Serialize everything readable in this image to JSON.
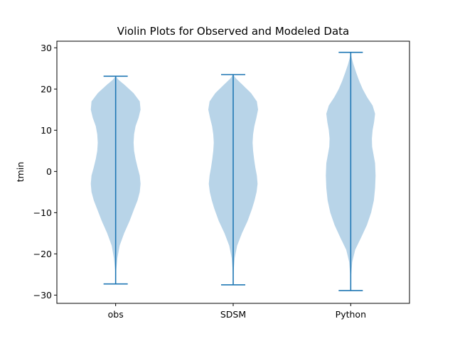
{
  "chart_data": {
    "type": "violin",
    "title": "Violin Plots for Observed and Modeled Data",
    "xlabel": "",
    "ylabel": "tmin",
    "categories": [
      "obs",
      "SDSM",
      "Python"
    ],
    "ylim": [
      -32,
      31.6
    ],
    "yticks": [
      -30,
      -20,
      -10,
      0,
      10,
      20,
      30
    ],
    "grid": false,
    "colors": {
      "body": "#b8d4e8",
      "lines": "#1f77b4",
      "axes": "#000000"
    },
    "series": [
      {
        "category": "obs",
        "min": -27.3,
        "max": 23.1,
        "profile": [
          [
            -27.3,
            0.0
          ],
          [
            -24,
            0.02
          ],
          [
            -21,
            0.07
          ],
          [
            -18,
            0.16
          ],
          [
            -15,
            0.34
          ],
          [
            -12,
            0.56
          ],
          [
            -9,
            0.75
          ],
          [
            -7,
            0.88
          ],
          [
            -5,
            0.97
          ],
          [
            -3,
            1.0
          ],
          [
            -1,
            0.97
          ],
          [
            1,
            0.88
          ],
          [
            3,
            0.8
          ],
          [
            5,
            0.74
          ],
          [
            7,
            0.72
          ],
          [
            9,
            0.74
          ],
          [
            11,
            0.8
          ],
          [
            13,
            0.92
          ],
          [
            15,
            1.0
          ],
          [
            17,
            0.97
          ],
          [
            19,
            0.72
          ],
          [
            21,
            0.36
          ],
          [
            22.2,
            0.12
          ],
          [
            23.1,
            0.0
          ]
        ]
      },
      {
        "category": "SDSM",
        "min": -27.5,
        "max": 23.5,
        "profile": [
          [
            -27.5,
            0.0
          ],
          [
            -24,
            0.02
          ],
          [
            -21,
            0.06
          ],
          [
            -18,
            0.16
          ],
          [
            -15,
            0.35
          ],
          [
            -12,
            0.58
          ],
          [
            -9,
            0.76
          ],
          [
            -7,
            0.86
          ],
          [
            -5,
            0.94
          ],
          [
            -3,
            0.98
          ],
          [
            -1,
            0.95
          ],
          [
            1,
            0.89
          ],
          [
            3,
            0.84
          ],
          [
            5,
            0.8
          ],
          [
            7,
            0.78
          ],
          [
            9,
            0.8
          ],
          [
            11,
            0.85
          ],
          [
            13,
            0.93
          ],
          [
            15,
            1.0
          ],
          [
            17,
            0.95
          ],
          [
            19,
            0.72
          ],
          [
            21,
            0.38
          ],
          [
            22.5,
            0.12
          ],
          [
            23.5,
            0.0
          ]
        ]
      },
      {
        "category": "Python",
        "min": -28.9,
        "max": 28.9,
        "profile": [
          [
            -28.9,
            0.0
          ],
          [
            -25,
            0.02
          ],
          [
            -22,
            0.06
          ],
          [
            -19,
            0.18
          ],
          [
            -16,
            0.42
          ],
          [
            -13,
            0.65
          ],
          [
            -10,
            0.82
          ],
          [
            -7,
            0.93
          ],
          [
            -4,
            0.98
          ],
          [
            -1,
            1.0
          ],
          [
            2,
            0.98
          ],
          [
            4,
            0.92
          ],
          [
            6,
            0.86
          ],
          [
            8,
            0.85
          ],
          [
            10,
            0.88
          ],
          [
            12,
            0.94
          ],
          [
            14,
            0.98
          ],
          [
            16,
            0.88
          ],
          [
            18,
            0.66
          ],
          [
            20,
            0.48
          ],
          [
            22,
            0.34
          ],
          [
            24,
            0.22
          ],
          [
            26,
            0.11
          ],
          [
            27.5,
            0.04
          ],
          [
            28.9,
            0.0
          ]
        ]
      }
    ]
  }
}
